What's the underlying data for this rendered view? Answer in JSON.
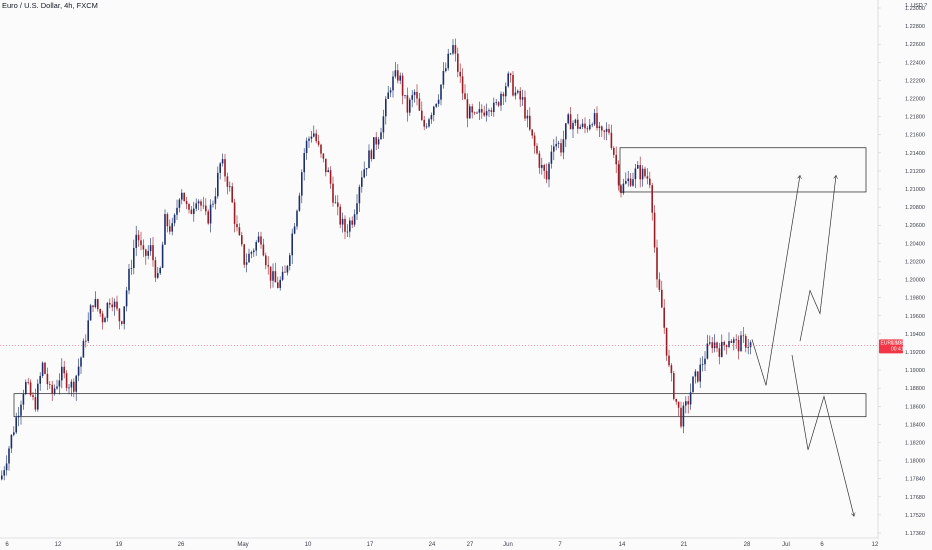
{
  "header": {
    "title": "Euro / U.S. Dollar, 4h, FXCM"
  },
  "chart_data": {
    "type": "candlestick",
    "title": "Euro / U.S. Dollar, 4h, FXCM",
    "currency": "USD",
    "unit_label": "1. USD ?",
    "ylim": [
      1.1725,
      1.2325
    ],
    "yticks": [
      "1.23000",
      "1.22800",
      "1.22600",
      "1.22400",
      "1.22200",
      "1.22000",
      "1.21800",
      "1.21600",
      "1.21400",
      "1.21200",
      "1.21000",
      "1.20800",
      "1.20600",
      "1.20400",
      "1.20200",
      "1.20000",
      "1.19800",
      "1.19600",
      "1.19400",
      "1.19200",
      "1.19000",
      "1.18800",
      "1.18600",
      "1.18400",
      "1.18200",
      "1.18000",
      "1.17840",
      "1.17680",
      "1.17520",
      "1.17360"
    ],
    "xticks": [
      "6",
      "12",
      "19",
      "26",
      "May",
      "10",
      "17",
      "24",
      "27",
      "Jun",
      "7",
      "14",
      "21",
      "28",
      "Jul",
      "6",
      "12"
    ],
    "current_price": {
      "symbol": "EURUSD",
      "value": "1.19355",
      "countdown": "00:41:20",
      "price": 1.19355
    },
    "grid": false,
    "series": [
      {
        "type": "price-path",
        "points": [
          [
            0,
            1.179
          ],
          [
            14,
            1.185
          ],
          [
            24,
            1.1895
          ],
          [
            34,
            1.187
          ],
          [
            42,
            1.1915
          ],
          [
            50,
            1.188
          ],
          [
            60,
            1.1905
          ],
          [
            72,
            1.189
          ],
          [
            82,
            1.193
          ],
          [
            92,
            1.1985
          ],
          [
            102,
            1.1965
          ],
          [
            110,
            1.199
          ],
          [
            120,
            1.196
          ],
          [
            128,
            1.201
          ],
          [
            136,
            1.206
          ],
          [
            142,
            1.203
          ],
          [
            150,
            1.204
          ],
          [
            158,
            1.2
          ],
          [
            164,
            1.207
          ],
          [
            172,
            1.206
          ],
          [
            180,
            1.211
          ],
          [
            188,
            1.2075
          ],
          [
            196,
            1.21
          ],
          [
            206,
            1.207
          ],
          [
            214,
            1.21
          ],
          [
            220,
            1.2135
          ],
          [
            228,
            1.211
          ],
          [
            236,
            1.206
          ],
          [
            244,
            1.2025
          ],
          [
            252,
            1.204
          ],
          [
            260,
            1.2055
          ],
          [
            268,
            1.2015
          ],
          [
            276,
            1.2
          ],
          [
            284,
            1.201
          ],
          [
            292,
            1.206
          ],
          [
            298,
            1.21
          ],
          [
            304,
            1.215
          ],
          [
            312,
            1.217
          ],
          [
            320,
            1.214
          ],
          [
            328,
            1.212
          ],
          [
            336,
            1.208
          ],
          [
            344,
            1.206
          ],
          [
            352,
            1.2075
          ],
          [
            360,
            1.212
          ],
          [
            368,
            1.214
          ],
          [
            376,
            1.216
          ],
          [
            382,
            1.218
          ],
          [
            390,
            1.222
          ],
          [
            398,
            1.223
          ],
          [
            406,
            1.219
          ],
          [
            414,
            1.221
          ],
          [
            422,
            1.217
          ],
          [
            430,
            1.219
          ],
          [
            438,
            1.221
          ],
          [
            446,
            1.224
          ],
          [
            452,
            1.226
          ],
          [
            458,
            1.223
          ],
          [
            466,
            1.219
          ],
          [
            474,
            1.218
          ],
          [
            482,
            1.219
          ],
          [
            488,
            1.22
          ],
          [
            494,
            1.219
          ],
          [
            500,
            1.221
          ],
          [
            508,
            1.2225
          ],
          [
            516,
            1.2205
          ],
          [
            522,
            1.22
          ],
          [
            528,
            1.217
          ],
          [
            534,
            1.215
          ],
          [
            540,
            1.213
          ],
          [
            546,
            1.2115
          ],
          [
            552,
            1.216
          ],
          [
            560,
            1.215
          ],
          [
            568,
            1.218
          ],
          [
            576,
            1.2175
          ],
          [
            584,
            1.217
          ],
          [
            592,
            1.2185
          ],
          [
            600,
            1.216
          ],
          [
            608,
            1.217
          ],
          [
            614,
            1.214
          ],
          [
            620,
            1.2105
          ],
          [
            628,
            1.2115
          ],
          [
            636,
            1.2125
          ],
          [
            644,
            1.212
          ],
          [
            650,
            1.2115
          ],
          [
            656,
            1.2
          ],
          [
            660,
            1.1985
          ],
          [
            664,
            1.195
          ],
          [
            668,
            1.191
          ],
          [
            674,
            1.188
          ],
          [
            680,
            1.1855
          ],
          [
            686,
            1.187
          ],
          [
            692,
            1.1895
          ],
          [
            698,
            1.1905
          ],
          [
            704,
            1.1925
          ],
          [
            712,
            1.194
          ],
          [
            720,
            1.193
          ],
          [
            728,
            1.1945
          ],
          [
            736,
            1.1935
          ],
          [
            744,
            1.194
          ],
          [
            752,
            1.1935
          ]
        ]
      }
    ],
    "zones": [
      {
        "name": "resistance-zone",
        "y_top": 1.215,
        "y_bottom": 1.2102
      },
      {
        "name": "support-zone",
        "y_top": 1.1883,
        "y_bottom": 1.1858
      }
    ],
    "projections": [
      {
        "name": "bullish-projection-a",
        "points": [
          [
            752,
            1.1942
          ],
          [
            766,
            1.1892
          ],
          [
            800,
            1.212
          ]
        ]
      },
      {
        "name": "bullish-projection-b",
        "points": [
          [
            800,
            1.194
          ],
          [
            810,
            1.1995
          ],
          [
            820,
            1.197
          ],
          [
            836,
            1.212
          ]
        ]
      },
      {
        "name": "bearish-projection",
        "points": [
          [
            792,
            1.1925
          ],
          [
            808,
            1.1822
          ],
          [
            824,
            1.188
          ],
          [
            854,
            1.175
          ]
        ]
      }
    ]
  }
}
